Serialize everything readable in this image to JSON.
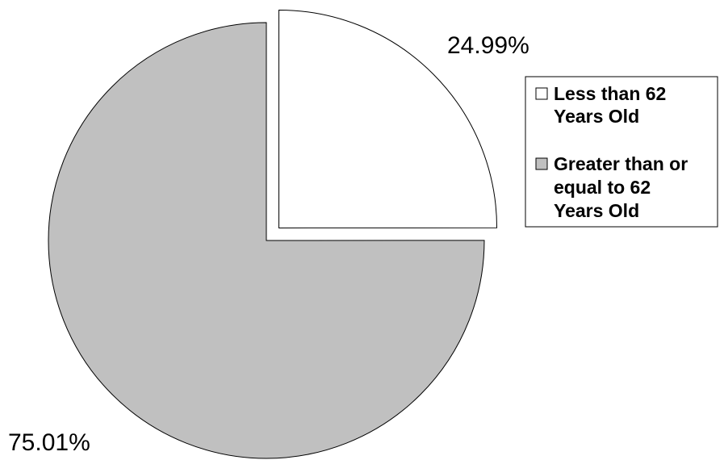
{
  "chart_data": {
    "type": "pie",
    "title": "",
    "slices": [
      {
        "label": "Less than 62 Years Old",
        "label_lines": [
          "Less than 62",
          "Years Old"
        ],
        "value": 24.99,
        "value_label": "24.99%",
        "color": "#ffffff",
        "exploded": true
      },
      {
        "label": "Greater than or equal to 62 Years Old",
        "label_lines": [
          "Greater than or",
          "equal to 62",
          "Years Old"
        ],
        "value": 75.01,
        "value_label": "75.01%",
        "color": "#c0c0c0",
        "exploded": false
      }
    ],
    "legend": {
      "position": "right"
    },
    "start_angle": "12 o'clock, clockwise"
  }
}
